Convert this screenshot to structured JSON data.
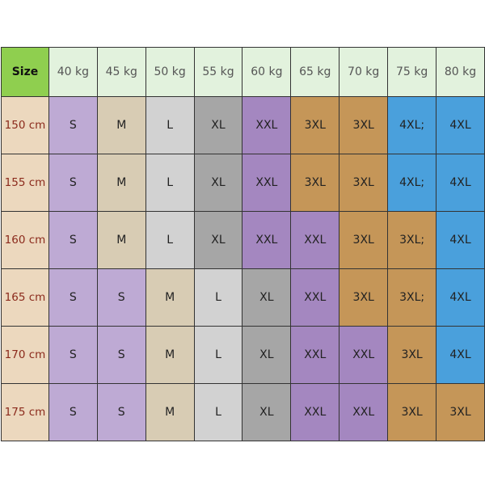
{
  "table": {
    "corner_label": "Size",
    "weights": [
      "40 kg",
      "45 kg",
      "50 kg",
      "55 kg",
      "60 kg",
      "65 kg",
      "70 kg",
      "75 kg",
      "80 kg"
    ],
    "rows": [
      {
        "height": "150 cm",
        "sizes": [
          "S",
          "M",
          "L",
          "XL",
          "XXL",
          "3XL",
          "3XL",
          "4XL;",
          "4XL"
        ]
      },
      {
        "height": "155 cm",
        "sizes": [
          "S",
          "M",
          "L",
          "XL",
          "XXL",
          "3XL",
          "3XL",
          "4XL;",
          "4XL"
        ]
      },
      {
        "height": "160 cm",
        "sizes": [
          "S",
          "M",
          "L",
          "XL",
          "XXL",
          "XXL",
          "3XL",
          "3XL;",
          "4XL"
        ]
      },
      {
        "height": "165 cm",
        "sizes": [
          "S",
          "S",
          "M",
          "L",
          "XL",
          "XXL",
          "3XL",
          "3XL;",
          "4XL"
        ]
      },
      {
        "height": "170 cm",
        "sizes": [
          "S",
          "S",
          "M",
          "L",
          "XL",
          "XXL",
          "XXL",
          "3XL",
          "4XL"
        ]
      },
      {
        "height": "175 cm",
        "sizes": [
          "S",
          "S",
          "M",
          "L",
          "XL",
          "XXL",
          "XXL",
          "3XL",
          "3XL"
        ]
      }
    ],
    "colors": {
      "corner": "#8fcf4f",
      "weight_header": "#e2f2dd",
      "height_header": "#ecd8be",
      "S": "#beaad4",
      "M": "#d8ccb4",
      "L": "#d2d2d2",
      "XL": "#a6a6a6",
      "XXL": "#a487c0",
      "3XL": "#c59658",
      "4XL": "#4aa0dc"
    }
  }
}
